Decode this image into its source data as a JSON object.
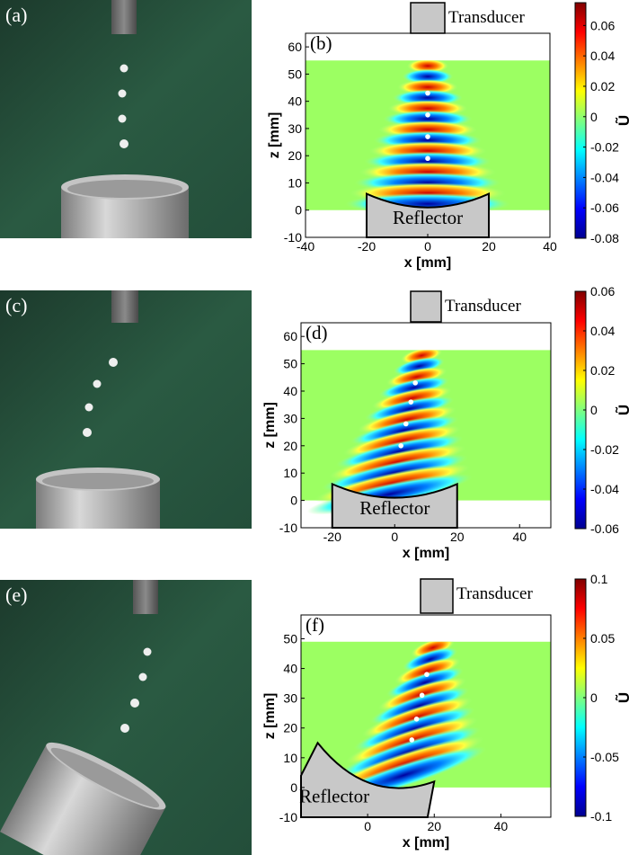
{
  "panels": {
    "a": {
      "label": "(a)"
    },
    "b": {
      "label": "(b)",
      "xlabel": "x [mm]",
      "ylabel": "z [mm]",
      "cbar_label": "Ũ",
      "transducer": "Transducer",
      "reflector": "Reflector",
      "xticks": [
        "-40",
        "-20",
        "0",
        "20",
        "40"
      ],
      "yticks": [
        "-10",
        "0",
        "10",
        "20",
        "30",
        "40",
        "50",
        "60"
      ],
      "cticks": [
        "0.06",
        "0.04",
        "0.02",
        "0",
        "-0.02",
        "-0.04",
        "-0.06",
        "-0.08"
      ]
    },
    "c": {
      "label": "(c)"
    },
    "d": {
      "label": "(d)",
      "xlabel": "x [mm]",
      "ylabel": "z [mm]",
      "cbar_label": "Ũ",
      "transducer": "Transducer",
      "reflector": "Reflector",
      "xticks": [
        "-20",
        "0",
        "20",
        "40"
      ],
      "yticks": [
        "-10",
        "0",
        "10",
        "20",
        "30",
        "40",
        "50",
        "60"
      ],
      "cticks": [
        "0.06",
        "0.04",
        "0.02",
        "0",
        "-0.02",
        "-0.04",
        "-0.06"
      ]
    },
    "e": {
      "label": "(e)"
    },
    "f": {
      "label": "(f)",
      "xlabel": "x [mm]",
      "ylabel": "z [mm]",
      "cbar_label": "Ũ",
      "transducer": "Transducer",
      "reflector": "Reflector",
      "xticks": [
        "0",
        "20",
        "40"
      ],
      "yticks": [
        "-10",
        "0",
        "10",
        "20",
        "30",
        "40",
        "50"
      ],
      "cticks": [
        "0.1",
        "0.05",
        "0",
        "-0.05",
        "-0.1"
      ]
    }
  },
  "chart_data": [
    {
      "type": "heatmap",
      "panel": "b",
      "xlabel": "x [mm]",
      "ylabel": "z [mm]",
      "xlim": [
        -40,
        40
      ],
      "ylim": [
        -10,
        65
      ],
      "clim": [
        -0.08,
        0.075
      ],
      "particles_z_mm": [
        43,
        35,
        27,
        19
      ],
      "colormap": "jet"
    },
    {
      "type": "heatmap",
      "panel": "d",
      "xlabel": "x [mm]",
      "ylabel": "z [mm]",
      "xlim": [
        -30,
        50
      ],
      "ylim": [
        -10,
        65
      ],
      "clim": [
        -0.06,
        0.06
      ],
      "particles_z_mm": [
        43,
        36,
        28,
        20
      ],
      "colormap": "jet"
    },
    {
      "type": "heatmap",
      "panel": "f",
      "xlabel": "x [mm]",
      "ylabel": "z [mm]",
      "xlim": [
        -20,
        55
      ],
      "ylim": [
        -10,
        58
      ],
      "clim": [
        -0.1,
        0.1
      ],
      "particles_z_mm": [
        38,
        31,
        23,
        16
      ],
      "colormap": "jet"
    }
  ]
}
